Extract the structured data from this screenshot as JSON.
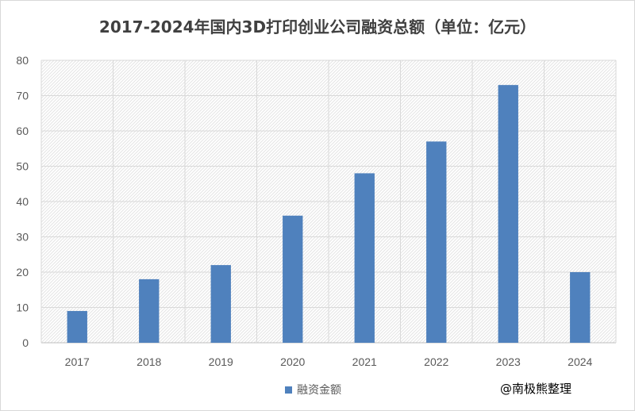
{
  "chart_data": {
    "type": "bar",
    "title": "2017-2024年国内3D打印创业公司融资总额（单位：亿元）",
    "categories": [
      "2017",
      "2018",
      "2019",
      "2020",
      "2021",
      "2022",
      "2023",
      "2024"
    ],
    "series": [
      {
        "name": "融资金额",
        "values": [
          9,
          18,
          22,
          36,
          48,
          57,
          73,
          20
        ],
        "color": "#4f81bd"
      }
    ],
    "ylim": [
      0,
      80
    ],
    "yticks": [
      0,
      10,
      20,
      30,
      40,
      50,
      60,
      70,
      80
    ],
    "grid": true,
    "legend_position": "bottom"
  },
  "watermark": "@南极熊整理"
}
